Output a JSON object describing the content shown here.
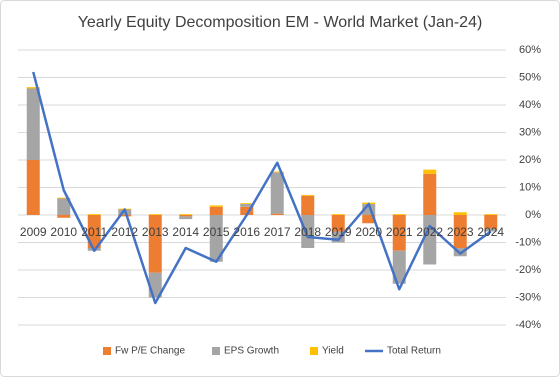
{
  "chart_data": {
    "type": "bar",
    "title": "Yearly Equity Decomposition EM - World Market (Jan-24)",
    "categories": [
      "2009",
      "2010",
      "2011",
      "2012",
      "2013",
      "2014",
      "2015",
      "2016",
      "2017",
      "2018",
      "2019",
      "2020",
      "2021",
      "2022",
      "2023",
      "2024"
    ],
    "series": [
      {
        "name": "Fw P/E Change",
        "color": "#ed7d31",
        "values": [
          20,
          -1,
          -12,
          -0.5,
          -21,
          -0.5,
          3,
          3,
          0.5,
          7,
          -6,
          -3,
          -13,
          15,
          -12,
          -5
        ]
      },
      {
        "name": "EPS Growth",
        "color": "#a5a5a5",
        "values": [
          26,
          6,
          -1,
          2,
          -9,
          -1,
          -17,
          1,
          15,
          -12,
          -4,
          4,
          -12,
          -18,
          -3,
          -1
        ]
      },
      {
        "name": "Yield",
        "color": "#ffc000",
        "values": [
          0.5,
          0.3,
          0.3,
          0.3,
          0.3,
          0.3,
          0.5,
          0.3,
          0.3,
          0.3,
          0.3,
          0.5,
          0.3,
          1.5,
          1,
          0.3
        ]
      },
      {
        "name": "Total Return",
        "color": "#4472c4",
        "type": "line",
        "values": [
          52,
          9,
          -13,
          2,
          -32,
          -12,
          -17,
          0,
          19,
          -8,
          -9,
          4,
          -27,
          -4,
          -14,
          -6
        ]
      }
    ],
    "ylim": [
      -40,
      60
    ],
    "yticks": [
      {
        "value": -40,
        "label": "-40%"
      },
      {
        "value": -30,
        "label": "-30%"
      },
      {
        "value": -20,
        "label": "-20%"
      },
      {
        "value": -10,
        "label": "-10%"
      },
      {
        "value": 0,
        "label": "0%"
      },
      {
        "value": 10,
        "label": "10%"
      },
      {
        "value": 20,
        "label": "20%"
      },
      {
        "value": 30,
        "label": "30%"
      },
      {
        "value": 40,
        "label": "40%"
      },
      {
        "value": 50,
        "label": "50%"
      },
      {
        "value": 60,
        "label": "60%"
      }
    ],
    "grid": true,
    "legend": "bottom"
  }
}
